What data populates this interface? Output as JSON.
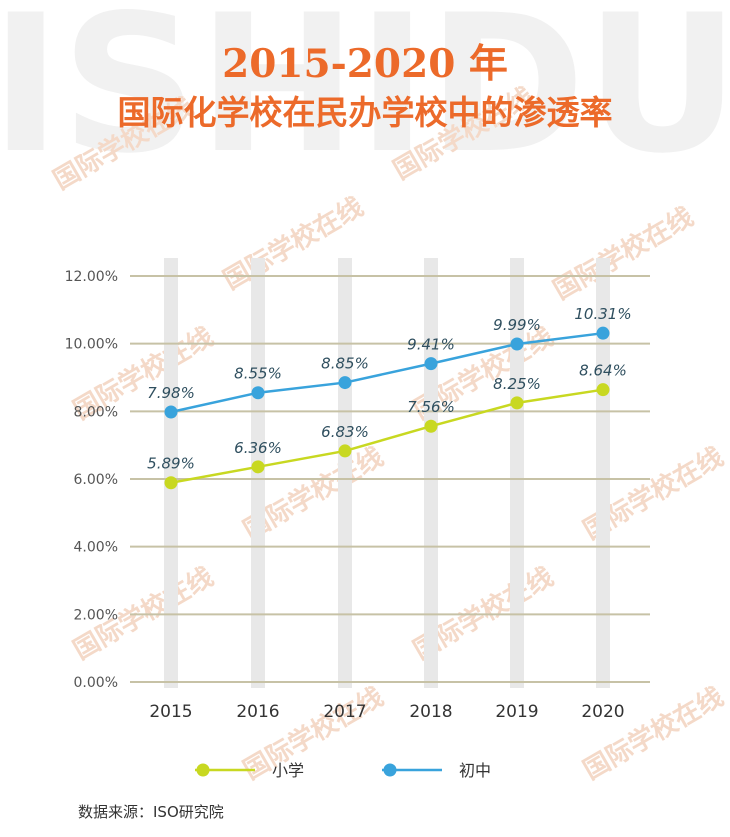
{
  "title_line1": "2015-2020 年",
  "title_line2": "国际化学校在民办学校中的渗透率",
  "watermark_text": "ISHIDU",
  "watermark_brand": "国际学校在线",
  "source": "数据来源：ISO研究院",
  "colors": {
    "title": "#ec6a2a",
    "primary_series": "#c8d821",
    "middle_series": "#39a3dc",
    "grid": "#c7c2a6",
    "column_band": "#e8e8e8",
    "label_text": "#2f4f5f",
    "axis_text": "#555555",
    "watermark": "#f4d9c8"
  },
  "chart_data": {
    "type": "line",
    "title": "2015-2020 年 国际化学校在民办学校中的渗透率",
    "categories": [
      "2015",
      "2016",
      "2017",
      "2018",
      "2019",
      "2020"
    ],
    "ylim": [
      0,
      12
    ],
    "yticks": [
      "0.00%",
      "2.00%",
      "4.00%",
      "6.00%",
      "8.00%",
      "10.00%",
      "12.00%"
    ],
    "series": [
      {
        "name": "小学",
        "color": "#c8d821",
        "values": [
          5.89,
          6.36,
          6.83,
          7.56,
          8.25,
          8.64
        ],
        "labels": [
          "5.89%",
          "6.36%",
          "6.83%",
          "7.56%",
          "8.25%",
          "8.64%"
        ]
      },
      {
        "name": "初中",
        "color": "#39a3dc",
        "values": [
          7.98,
          8.55,
          8.85,
          9.41,
          9.99,
          10.31
        ],
        "labels": [
          "7.98%",
          "8.55%",
          "8.85%",
          "9.41%",
          "9.99%",
          "10.31%"
        ]
      }
    ],
    "legend_position": "bottom",
    "grid": true
  }
}
